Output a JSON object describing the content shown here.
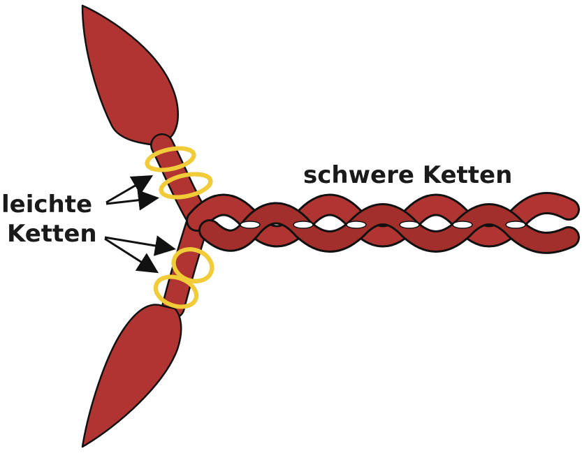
{
  "labels": {
    "light_chains": "leichte\nKetten",
    "light_chains_line1": "leichte",
    "light_chains_line2": "Ketten",
    "heavy_chains": "schwere Ketten"
  },
  "colors": {
    "myosin_red": "#b03532",
    "outline": "#111111",
    "light_chain_yellow": "#f2cc38",
    "background": "#ffffff"
  }
}
